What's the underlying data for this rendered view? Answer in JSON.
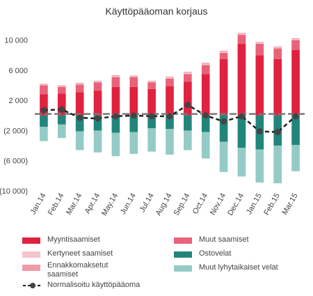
{
  "chart_data": {
    "type": "bar",
    "title": "Käyttöpääoman korjaus",
    "categories": [
      "Jan.14",
      "Feb.14",
      "Mar.14",
      "Apr.14",
      "May.14",
      "Jun.14",
      "Jul.14",
      "Aug.14",
      "Sep.14",
      "Oct.14",
      "Nov.14",
      "Dec.14",
      "Jan.15",
      "Feb.15",
      "Mar.15"
    ],
    "ylim": [
      -10000,
      12000
    ],
    "yticks": [
      10000,
      6000,
      2000,
      -2000,
      -6000,
      -10000
    ],
    "ytick_labels": [
      "10 000",
      "6 000",
      "2 000",
      "(2 000)",
      "(6 000)",
      "(10 000)"
    ],
    "stack_series": [
      {
        "name": "Myyntisaamiset",
        "color": "#e0213f",
        "stack": "pos",
        "values": [
          2800,
          2900,
          3100,
          3300,
          3800,
          3800,
          3500,
          3900,
          4500,
          5500,
          7500,
          9500,
          8000,
          7500,
          8700
        ]
      },
      {
        "name": "Muut saamiset",
        "color": "#e86279",
        "stack": "pos",
        "values": [
          1200,
          900,
          1000,
          1100,
          1300,
          1300,
          900,
          1000,
          1000,
          1200,
          800,
          1200,
          1500,
          1400,
          1300
        ]
      },
      {
        "name": "Kertyneet saamiset",
        "color": "#f6c4cc",
        "stack": "pos",
        "values": [
          100,
          100,
          150,
          100,
          150,
          100,
          100,
          150,
          200,
          200,
          200,
          150,
          150,
          150,
          150
        ]
      },
      {
        "name": "Ennakkomaksetut saamiset",
        "color": "#f19aa7",
        "stack": "pos",
        "values": [
          100,
          100,
          100,
          100,
          100,
          100,
          100,
          100,
          100,
          100,
          100,
          100,
          100,
          100,
          100
        ]
      },
      {
        "name": "Ostovelat",
        "color": "#22857b",
        "stack": "neg",
        "values": [
          -1500,
          -1200,
          -2100,
          -2000,
          -2300,
          -2200,
          -1700,
          -1800,
          -2000,
          -2200,
          -3500,
          -4300,
          -4500,
          -4000,
          -3900
        ]
      },
      {
        "name": "Muut lyhytaikaiset velat",
        "color": "#95cbc6",
        "stack": "neg",
        "values": [
          -1900,
          -1800,
          -2500,
          -2900,
          -3100,
          -2900,
          -3100,
          -3400,
          -2600,
          -3500,
          -4000,
          -3800,
          -4400,
          -5000,
          -3500
        ]
      }
    ],
    "line_series": {
      "name": "Normalisoitu käyttöpääoma",
      "values": [
        700,
        800,
        -300,
        -400,
        -100,
        0,
        -100,
        -100,
        1400,
        0,
        -800,
        -100,
        -2100,
        -2200,
        -100
      ]
    },
    "reference_line": 200,
    "colors": {
      "reference_line": "#777777",
      "line": "#1f1f1f",
      "marker": "#444444",
      "axis_text": "#444444"
    }
  },
  "legend": [
    {
      "label": "Myyntisaamiset",
      "color": "#e0213f",
      "kind": "bar"
    },
    {
      "label": "Muut saamiset",
      "color": "#e86279",
      "kind": "bar"
    },
    {
      "label": "Kertyneet saamiset",
      "color": "#f6c4cc",
      "kind": "bar"
    },
    {
      "label": "Ostovelat",
      "color": "#22857b",
      "kind": "bar"
    },
    {
      "label": "Ennakkomaksetut\nsaamiset",
      "color": "#f19aa7",
      "kind": "bar"
    },
    {
      "label": "Muut lyhytaikaiset velat",
      "color": "#95cbc6",
      "kind": "bar"
    },
    {
      "label": "Normalisoitu käyttöpääoma",
      "color": "#1f1f1f",
      "kind": "line"
    }
  ]
}
